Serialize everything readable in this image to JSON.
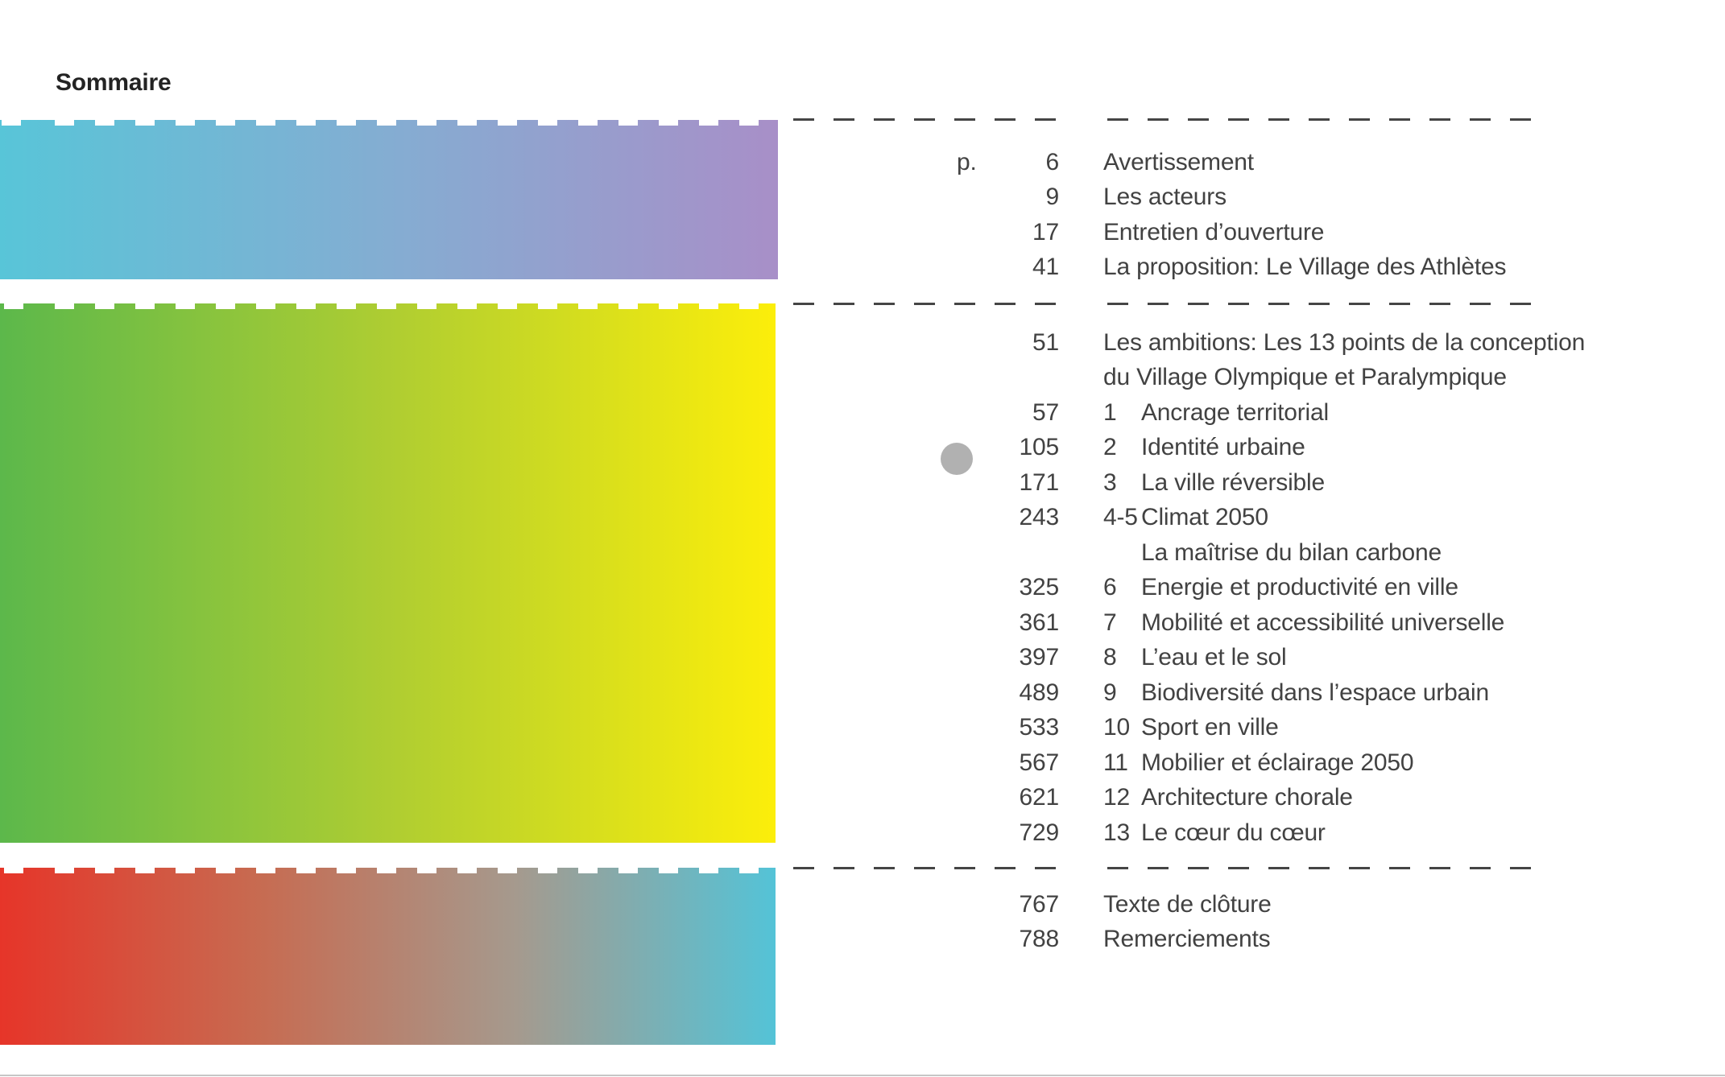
{
  "page": {
    "title": "Sommaire",
    "page_abbrev": "p."
  },
  "colors": {
    "heading": "#232323",
    "text": "#424242",
    "dash": "#454545",
    "dot": "#b1b1b1",
    "bottom_rule": "#c6c6c6",
    "bar_cyan_purple": [
      "#58c5d8",
      "#84add2",
      "#a88fc8"
    ],
    "bar_green_yellow": [
      "#5cb84b",
      "#aecd32",
      "#fcee0a"
    ],
    "bar_red_cyan": [
      "#e63529",
      "#c76b51",
      "#a59a8e",
      "#54c3d7"
    ]
  },
  "toc": {
    "sections": [
      {
        "name": "intro",
        "rows": [
          {
            "page": "6",
            "chapter_col": false,
            "title": "Avertissement"
          },
          {
            "page": "9",
            "chapter_col": false,
            "title": "Les acteurs"
          },
          {
            "page": "17",
            "chapter_col": false,
            "title": "Entretien d’ouverture"
          },
          {
            "page": "41",
            "chapter_col": false,
            "title": "La proposition: Le Village des Athlètes"
          }
        ]
      },
      {
        "name": "ambitions",
        "rows": [
          {
            "page": "51",
            "chapter_col": false,
            "title": "Les ambitions: Les 13 points de la conception"
          },
          {
            "page": "",
            "chapter_col": false,
            "title": "du Village Olympique et Paralympique"
          },
          {
            "page": "57",
            "chapter": "1",
            "chapter_col": true,
            "title": "Ancrage territorial"
          },
          {
            "page": "105",
            "chapter": "2",
            "chapter_col": true,
            "title": "Identité urbaine",
            "dot": true
          },
          {
            "page": "171",
            "chapter": "3",
            "chapter_col": true,
            "title": "La ville réversible"
          },
          {
            "page": "243",
            "chapter": "4-5",
            "chapter_col": true,
            "title": "Climat 2050"
          },
          {
            "page": "",
            "chapter": "",
            "chapter_col": true,
            "title": "La maîtrise du bilan carbone"
          },
          {
            "page": "325",
            "chapter": "6",
            "chapter_col": true,
            "title": "Energie et productivité en ville"
          },
          {
            "page": "361",
            "chapter": "7",
            "chapter_col": true,
            "title": "Mobilité et accessibilité universelle"
          },
          {
            "page": "397",
            "chapter": "8",
            "chapter_col": true,
            "title": "L’eau et le sol"
          },
          {
            "page": "489",
            "chapter": "9",
            "chapter_col": true,
            "title": "Biodiversité dans l’espace urbain"
          },
          {
            "page": "533",
            "chapter": "10",
            "chapter_col": true,
            "title": "Sport en ville"
          },
          {
            "page": "567",
            "chapter": "11",
            "chapter_col": true,
            "title": "Mobilier et éclairage 2050"
          },
          {
            "page": "621",
            "chapter": "12",
            "chapter_col": true,
            "title": "Architecture chorale"
          },
          {
            "page": "729",
            "chapter": "13",
            "chapter_col": true,
            "title": "Le cœur du cœur"
          }
        ]
      },
      {
        "name": "closing",
        "rows": [
          {
            "page": "767",
            "chapter_col": false,
            "title": "Texte de clôture"
          },
          {
            "page": "788",
            "chapter_col": false,
            "title": "Remerciements"
          }
        ]
      }
    ]
  }
}
